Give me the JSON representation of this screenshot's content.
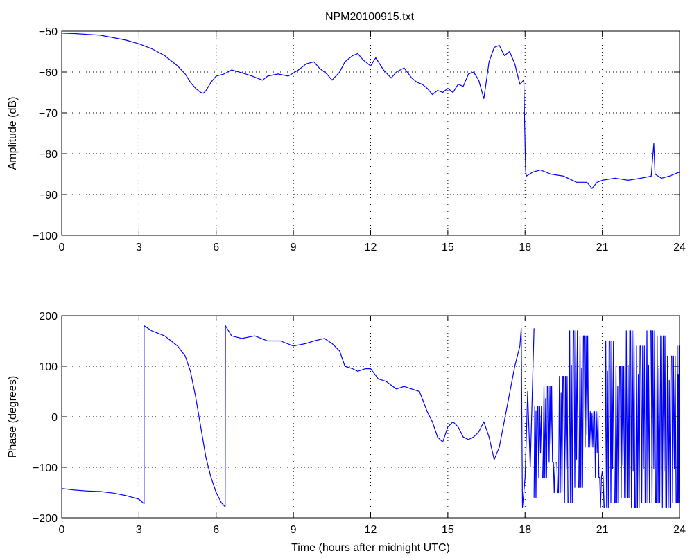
{
  "figure": {
    "title": "NPM20100915.txt"
  },
  "colors": {
    "trace": "#0000ff",
    "axes": "#000000",
    "grid": "#000000",
    "background": "#ffffff"
  },
  "chart_data": [
    {
      "type": "line",
      "title": "NPM20100915.txt",
      "xlabel": "",
      "ylabel": "Amplitude (dB)",
      "xlim": [
        0,
        24
      ],
      "ylim": [
        -100,
        -50
      ],
      "xticks": [
        0,
        3,
        6,
        9,
        12,
        15,
        18,
        21,
        24
      ],
      "yticks": [
        -100,
        -90,
        -80,
        -70,
        -60,
        -50
      ],
      "xtick_labels": [
        "0",
        "3",
        "6",
        "9",
        "12",
        "15",
        "18",
        "21",
        "24"
      ],
      "ytick_labels": [
        "−100",
        "−90",
        "−80",
        "−70",
        "−60",
        "−50"
      ],
      "grid": true,
      "series": [
        {
          "color": "#0000ff",
          "x": [
            0,
            0.5,
            1,
            1.5,
            2,
            2.5,
            3,
            3.5,
            4,
            4.5,
            4.8,
            5.0,
            5.2,
            5.4,
            5.5,
            5.6,
            5.8,
            6.0,
            6.3,
            6.6,
            7.0,
            7.4,
            7.8,
            8.0,
            8.4,
            8.8,
            9.2,
            9.5,
            9.8,
            10.0,
            10.3,
            10.5,
            10.8,
            11.0,
            11.3,
            11.5,
            11.7,
            12.0,
            12.2,
            12.5,
            12.8,
            13.0,
            13.3,
            13.6,
            13.8,
            14.0,
            14.2,
            14.4,
            14.6,
            14.8,
            15.0,
            15.2,
            15.4,
            15.6,
            15.8,
            16.0,
            16.2,
            16.4,
            16.5,
            16.6,
            16.8,
            17.0,
            17.2,
            17.4,
            17.6,
            17.8,
            17.95,
            18.02,
            18.05,
            18.3,
            18.6,
            19.0,
            19.5,
            20.0,
            20.4,
            20.6,
            20.8,
            21.0,
            21.5,
            22.0,
            22.5,
            22.9,
            23.0,
            23.05,
            23.3,
            23.6,
            24.0
          ],
          "y": [
            -50.5,
            -50.6,
            -50.8,
            -51.0,
            -51.6,
            -52.2,
            -53.1,
            -54.3,
            -56.0,
            -58.5,
            -60.5,
            -62.5,
            -64.0,
            -65.0,
            -65.2,
            -64.6,
            -62.5,
            -61.0,
            -60.5,
            -59.5,
            -60.2,
            -61.0,
            -62.0,
            -61.0,
            -60.5,
            -61.0,
            -59.5,
            -58.0,
            -57.5,
            -59.0,
            -60.5,
            -62.0,
            -60.0,
            -57.5,
            -56.0,
            -55.5,
            -57.0,
            -58.5,
            -56.5,
            -59.5,
            -61.5,
            -60.0,
            -59.0,
            -61.5,
            -62.5,
            -63.0,
            -64.0,
            -65.5,
            -64.5,
            -65.0,
            -64.0,
            -65.0,
            -63.0,
            -63.5,
            -60.5,
            -60.0,
            -62.0,
            -66.5,
            -62.0,
            -57.5,
            -54.0,
            -53.5,
            -56.0,
            -55.0,
            -58.0,
            -63.0,
            -62.0,
            -84.0,
            -85.5,
            -84.5,
            -84.0,
            -85.0,
            -85.5,
            -87.0,
            -87.0,
            -88.5,
            -87.0,
            -86.5,
            -86.0,
            -86.5,
            -86.0,
            -85.5,
            -77.5,
            -85.0,
            -86.0,
            -85.5,
            -84.5
          ]
        }
      ]
    },
    {
      "type": "line",
      "title": "",
      "xlabel": "Time (hours after midnight UTC)",
      "ylabel": "Phase (degrees)",
      "xlim": [
        0,
        24
      ],
      "ylim": [
        -200,
        200
      ],
      "xticks": [
        0,
        3,
        6,
        9,
        12,
        15,
        18,
        21,
        24
      ],
      "yticks": [
        -200,
        -100,
        0,
        100,
        200
      ],
      "xtick_labels": [
        "0",
        "3",
        "6",
        "9",
        "12",
        "15",
        "18",
        "21",
        "24"
      ],
      "ytick_labels": [
        "−200",
        "−100",
        "0",
        "100",
        "200"
      ],
      "grid": true,
      "series": [
        {
          "color": "#0000ff",
          "x": [
            0,
            0.5,
            1.0,
            1.5,
            2.0,
            2.5,
            3.0,
            3.2,
            3.2,
            3.5,
            4.0,
            4.5,
            4.8,
            5.0,
            5.2,
            5.4,
            5.6,
            5.8,
            6.0,
            6.2,
            6.35,
            6.36,
            6.6,
            7.0,
            7.5,
            8.0,
            8.5,
            9.0,
            9.5,
            9.8,
            10.2,
            10.5,
            10.8,
            11.0,
            11.3,
            11.5,
            11.8,
            12.0,
            12.3,
            12.6,
            13.0,
            13.3,
            13.6,
            13.9,
            14.2,
            14.4,
            14.6,
            14.8,
            15.0,
            15.2,
            15.4,
            15.6,
            15.8,
            16.0,
            16.2,
            16.4,
            16.6,
            16.8,
            17.0,
            17.3,
            17.6,
            17.8,
            17.85,
            17.9,
            18.0,
            18.1,
            18.2,
            18.35
          ],
          "y": [
            -142,
            -145,
            -147,
            -148,
            -151,
            -156,
            -163,
            -172,
            180,
            170,
            160,
            140,
            120,
            90,
            40,
            -20,
            -80,
            -120,
            -150,
            -170,
            -178,
            180,
            160,
            155,
            160,
            150,
            150,
            140,
            145,
            150,
            155,
            145,
            130,
            100,
            95,
            90,
            95,
            95,
            75,
            70,
            55,
            60,
            55,
            50,
            10,
            -10,
            -40,
            -50,
            -20,
            -10,
            -20,
            -40,
            -45,
            -40,
            -30,
            -10,
            -40,
            -85,
            -60,
            20,
            100,
            140,
            175,
            -180,
            -120,
            50,
            -100,
            175
          ]
        },
        {
          "color": "#0000ff",
          "style": "noise",
          "x": [
            18.35,
            18.5,
            18.7,
            18.9,
            19.1,
            19.3,
            19.5,
            19.7,
            19.9,
            20.1,
            20.3,
            20.5,
            20.7,
            20.9,
            21.1,
            21.3,
            21.5,
            21.7,
            21.9,
            22.1,
            22.3,
            22.5,
            22.7,
            22.9,
            23.1,
            23.3,
            23.5,
            23.7,
            23.9,
            24.0
          ],
          "y": [
            -160,
            20,
            -120,
            60,
            -90,
            -150,
            80,
            -170,
            170,
            -140,
            160,
            -60,
            10,
            -120,
            -180,
            150,
            -170,
            100,
            -160,
            170,
            -180,
            140,
            -170,
            170,
            -170,
            160,
            -180,
            120,
            -170,
            140
          ]
        }
      ]
    }
  ]
}
